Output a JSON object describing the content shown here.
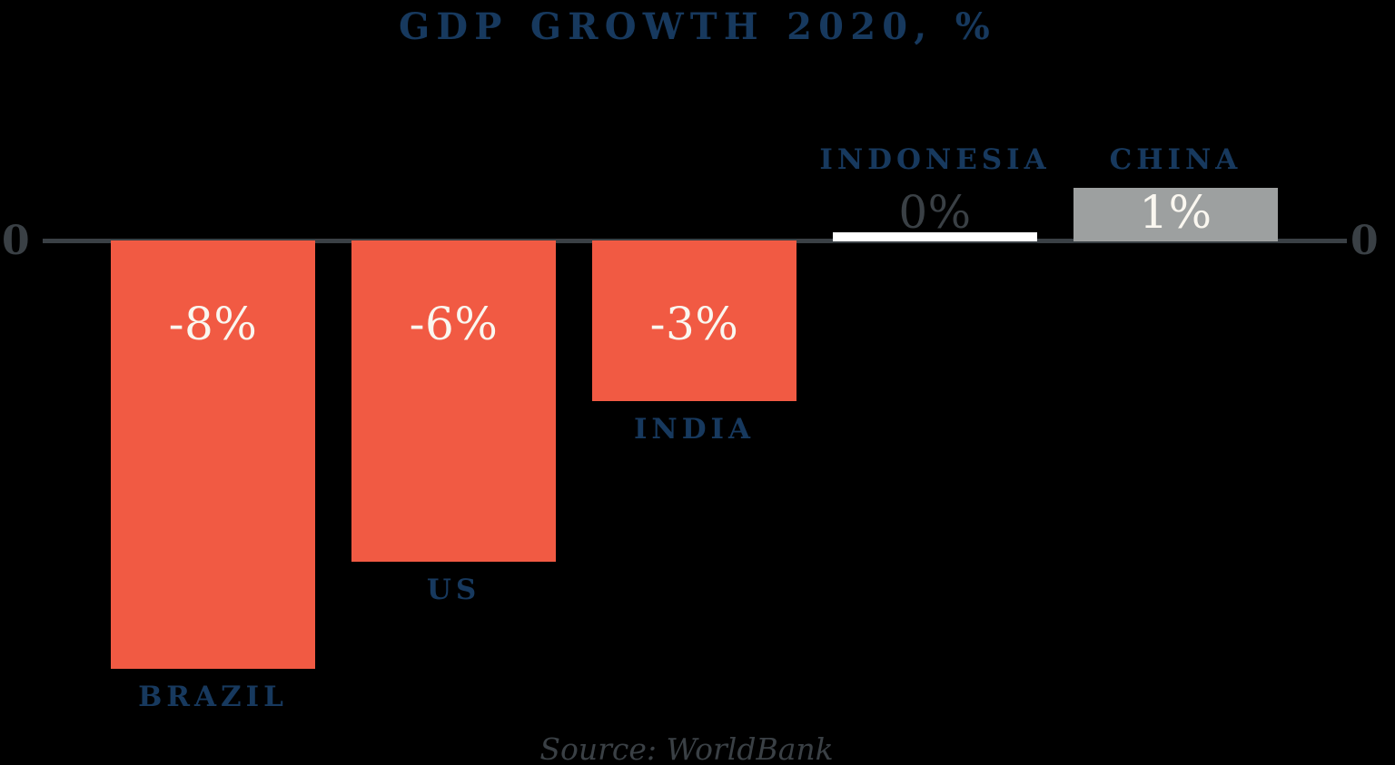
{
  "background_color": "#000000",
  "axis": {
    "left_tick": "0",
    "right_tick": "0",
    "line_color": "#3A4045",
    "tick_color": "#3A4045"
  },
  "source": {
    "text": "Source: WorldBank",
    "color": "#3A4045"
  },
  "chart_data": {
    "type": "bar",
    "title": "GDP GROWTH 2020, %",
    "categories": [
      "BRAZIL",
      "US",
      "INDIA",
      "INDONESIA",
      "CHINA"
    ],
    "values": [
      -8,
      -6,
      -3,
      0,
      1
    ],
    "value_labels": [
      "-8%",
      "-6%",
      "-3%",
      "0%",
      "1%"
    ],
    "xlabel": "",
    "ylabel": "",
    "ylim": [
      -8.5,
      1.5
    ],
    "baseline": 0,
    "grid": false,
    "legend": false,
    "orientation": "vertical",
    "bar_colors": [
      "#F15A43",
      "#F15A43",
      "#F15A43",
      "#FFFFFF",
      "#9DA0A0"
    ],
    "colors": {
      "negative_bar": "#F15A43",
      "zero_bar": "#FFFFFF",
      "positive_bar": "#9DA0A0",
      "title": "#17395E",
      "category_label": "#17395E",
      "value_label_inside": "#FAF7F0",
      "value_label_outside": "#3A4045"
    },
    "source": "Source: WorldBank"
  }
}
